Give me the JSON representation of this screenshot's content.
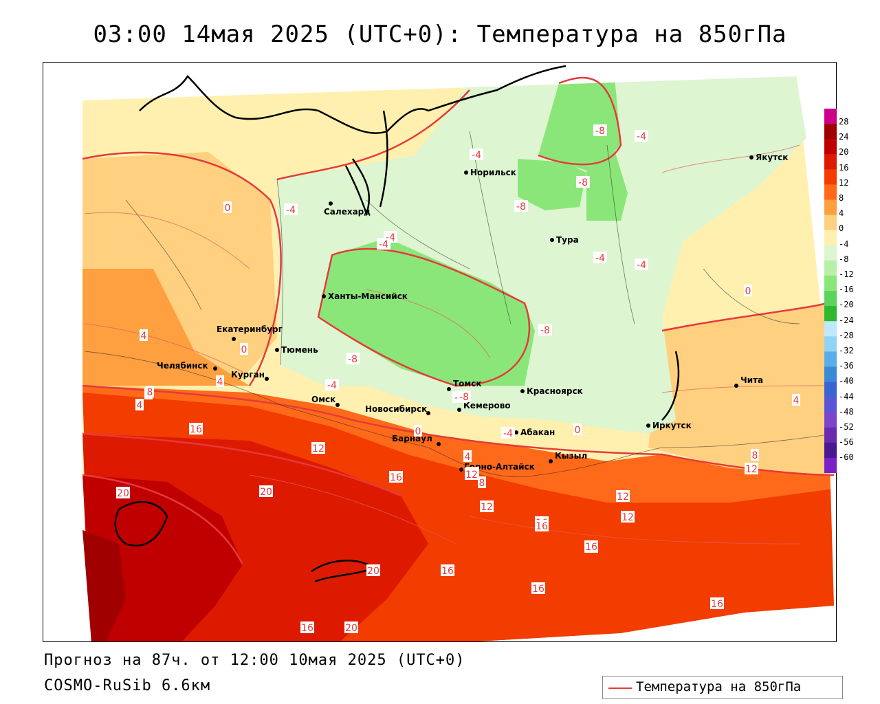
{
  "title": "03:00 14мая 2025 (UTC+0): Температура на 850гПа",
  "footer": {
    "forecast": "Прогноз на 87ч. от 12:00 10мая 2025 (UTC+0)",
    "model": "COSMO-RuSib 6.6км"
  },
  "legend": {
    "label": "Температура на 850гПа",
    "line_color": "#e53a3a"
  },
  "colorbar": {
    "ticks": [
      "28",
      "24",
      "20",
      "16",
      "12",
      "8",
      "4",
      "0",
      "-4",
      "-8",
      "-12",
      "-16",
      "-20",
      "-24",
      "-28",
      "-32",
      "-36",
      "-40",
      "-44",
      "-48",
      "-52",
      "-56",
      "-60"
    ],
    "colors": [
      "#cc0088",
      "#a00000",
      "#c00000",
      "#dd1a00",
      "#f23c00",
      "#ff6a1a",
      "#ffa040",
      "#ffd080",
      "#fff0b0",
      "#ddf5d0",
      "#b8f0a8",
      "#8be67a",
      "#5cd35c",
      "#2db82d",
      "#bfe8ff",
      "#92d3f5",
      "#5aaee8",
      "#3a8ad8",
      "#3a64d4",
      "#5a55d8",
      "#7b45cc",
      "#6a2ab0",
      "#4a1890",
      "#7a20c8"
    ]
  },
  "cities": [
    {
      "name": "Норильск"
    },
    {
      "name": "Якутск"
    },
    {
      "name": "Салехард"
    },
    {
      "name": "Тура"
    },
    {
      "name": "Ханты-Мансийск"
    },
    {
      "name": "Екатеринбург"
    },
    {
      "name": "Тюмень"
    },
    {
      "name": "Челябинск"
    },
    {
      "name": "Курган"
    },
    {
      "name": "Омск"
    },
    {
      "name": "Новосибирск"
    },
    {
      "name": "Томск"
    },
    {
      "name": "Кемерово"
    },
    {
      "name": "Красноярск"
    },
    {
      "name": "Барнаул"
    },
    {
      "name": "Абакан"
    },
    {
      "name": "Иркутск"
    },
    {
      "name": "Чита"
    },
    {
      "name": "Кызыл"
    },
    {
      "name": "Горно-Алтайск"
    }
  ],
  "contour_labels": [
    "-4",
    "-4",
    "-8",
    "-8",
    "-8",
    "-4",
    "0",
    "-4",
    "-4",
    "-8",
    "-4",
    "-4",
    "0",
    "-8",
    "-8",
    "-4",
    "0",
    "4",
    "0",
    "4",
    "8",
    "12",
    "16",
    "20",
    "20",
    "16",
    "12",
    "12",
    "16",
    "16",
    "16",
    "16",
    "20",
    "16",
    "16",
    "16",
    "20",
    "16",
    "0",
    "-8",
    "-4",
    "4",
    "8",
    "12",
    "12",
    "12",
    "8",
    "8",
    "4",
    "4",
    "12",
    "-4"
  ]
}
